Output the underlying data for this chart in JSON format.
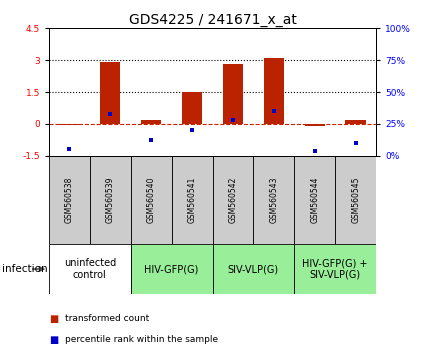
{
  "title": "GDS4225 / 241671_x_at",
  "samples": [
    "GSM560538",
    "GSM560539",
    "GSM560540",
    "GSM560541",
    "GSM560542",
    "GSM560543",
    "GSM560544",
    "GSM560545"
  ],
  "red_bars": [
    -0.05,
    2.9,
    0.2,
    1.5,
    2.8,
    3.1,
    -0.1,
    0.2
  ],
  "blue_pct": [
    5,
    33,
    12,
    20,
    28,
    35,
    4,
    10
  ],
  "ylim": [
    -1.5,
    4.5
  ],
  "yticks_left": [
    -1.5,
    0,
    1.5,
    3,
    4.5
  ],
  "yticks_right": [
    0,
    25,
    50,
    75,
    100
  ],
  "hlines": [
    0,
    1.5,
    3.0
  ],
  "hline_styles": [
    "dashed",
    "dotted",
    "dotted"
  ],
  "hline_colors": [
    "#cc2200",
    "black",
    "black"
  ],
  "bar_color": "#bb2200",
  "blue_color": "#0000cc",
  "bar_width": 0.5,
  "groups": [
    {
      "label": "uninfected\ncontrol",
      "start": 0,
      "end": 2,
      "color": "#ffffff"
    },
    {
      "label": "HIV-GFP(G)",
      "start": 2,
      "end": 4,
      "color": "#99ee99"
    },
    {
      "label": "SIV-VLP(G)",
      "start": 4,
      "end": 6,
      "color": "#99ee99"
    },
    {
      "label": "HIV-GFP(G) +\nSIV-VLP(G)",
      "start": 6,
      "end": 8,
      "color": "#99ee99"
    }
  ],
  "infection_label": "infection",
  "legend_red": "transformed count",
  "legend_blue": "percentile rank within the sample",
  "title_fontsize": 10,
  "tick_fontsize": 6.5,
  "label_fontsize": 7.5,
  "sample_fontsize": 5.5,
  "group_fontsize": 7
}
